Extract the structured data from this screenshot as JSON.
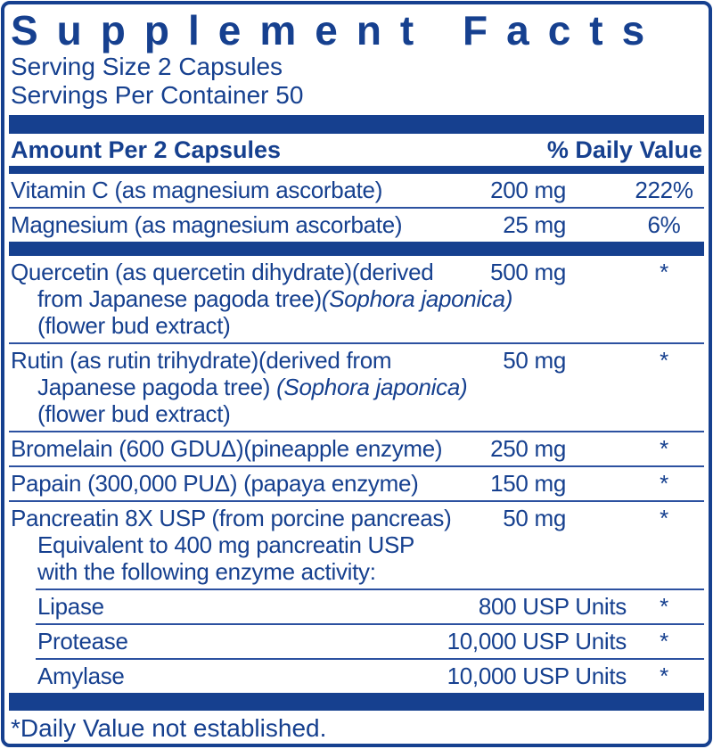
{
  "colors": {
    "navy": "#16408f",
    "divider": "#2c51a0"
  },
  "label": {
    "title": "Supplement Facts",
    "serving_size": "Serving Size 2 Capsules",
    "servings_per_container": "Servings Per Container 50",
    "header": {
      "amount": "Amount Per 2 Capsules",
      "daily_value": "% Daily Value"
    },
    "rows": [
      {
        "id": "vitamin-c",
        "sep": "none",
        "sub": false,
        "lines": [
          [
            {
              "t": "Vitamin C (as magnesium ascorbate)"
            }
          ]
        ],
        "amount": "200 mg",
        "dv": "222%"
      },
      {
        "id": "magnesium",
        "sep": "thin",
        "sub": false,
        "lines": [
          [
            {
              "t": "Magnesium (as magnesium ascorbate)"
            }
          ]
        ],
        "amount": "25 mg",
        "dv": "6%"
      },
      {
        "id": "quercetin",
        "sep": "bar",
        "sub": false,
        "lines": [
          [
            {
              "t": "Quercetin (as quercetin dihydrate)(derived"
            }
          ],
          [
            {
              "t": "from Japanese pagoda tree)"
            },
            {
              "t": "(Sophora japonica)",
              "i": true
            }
          ],
          [
            {
              "t": "(flower bud extract)"
            }
          ]
        ],
        "amount": "500 mg",
        "dv": "*"
      },
      {
        "id": "rutin",
        "sep": "thin",
        "sub": false,
        "lines": [
          [
            {
              "t": "Rutin (as rutin trihydrate)(derived from"
            }
          ],
          [
            {
              "t": "Japanese pagoda tree) "
            },
            {
              "t": "(Sophora japonica)",
              "i": true
            }
          ],
          [
            {
              "t": "(flower bud extract)"
            }
          ]
        ],
        "amount": "50 mg",
        "dv": "*"
      },
      {
        "id": "bromelain",
        "sep": "thin",
        "sub": false,
        "lines": [
          [
            {
              "t": "Bromelain (600 GDUΔ)(pineapple enzyme)"
            }
          ]
        ],
        "amount": "250 mg",
        "dv": "*"
      },
      {
        "id": "papain",
        "sep": "thin",
        "sub": false,
        "lines": [
          [
            {
              "t": "Papain (300,000 PUΔ) (papaya enzyme)"
            }
          ]
        ],
        "amount": "150 mg",
        "dv": "*"
      },
      {
        "id": "pancreatin",
        "sep": "thin",
        "sub": false,
        "lines": [
          [
            {
              "t": "Pancreatin 8X USP (from porcine pancreas)"
            }
          ],
          [
            {
              "t": "Equivalent to 400 mg pancreatin USP"
            }
          ],
          [
            {
              "t": "with the following enzyme activity:"
            }
          ]
        ],
        "amount": "50 mg",
        "dv": "*"
      },
      {
        "id": "lipase",
        "sep": "thin-indent",
        "sub": true,
        "lines": [
          [
            {
              "t": "Lipase"
            }
          ]
        ],
        "amount": "800 USP Units",
        "dv": "*"
      },
      {
        "id": "protease",
        "sep": "thin-indent",
        "sub": true,
        "lines": [
          [
            {
              "t": "Protease"
            }
          ]
        ],
        "amount": "10,000 USP Units",
        "dv": "*"
      },
      {
        "id": "amylase",
        "sep": "thin-indent",
        "sub": true,
        "lines": [
          [
            {
              "t": "Amylase"
            }
          ]
        ],
        "amount": "10,000 USP Units",
        "dv": "*"
      }
    ],
    "footnote": "*Daily Value not established."
  }
}
